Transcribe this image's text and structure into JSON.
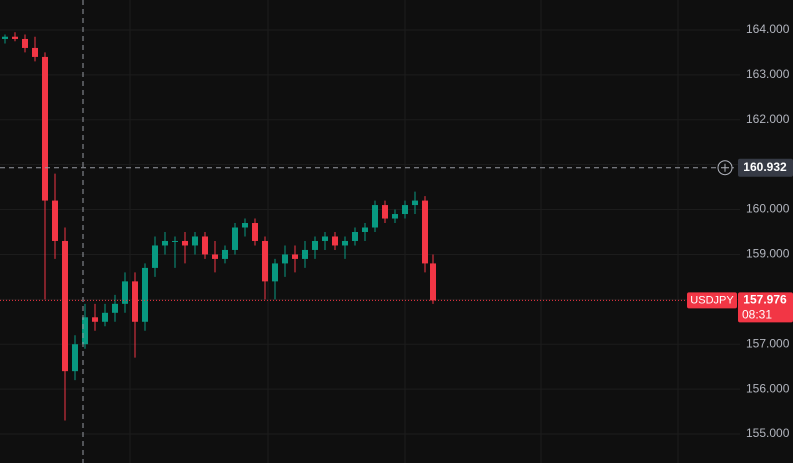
{
  "chart_data": {
    "type": "candlestick",
    "symbol": "USDJPY",
    "last_price": 157.976,
    "countdown": "08:31",
    "crosshair_price": 160.932,
    "up_color": "#089981",
    "down_color": "#f23645",
    "grid": true,
    "ylim": [
      154.354,
      164.668
    ],
    "yticks": [
      {
        "value": 155,
        "label": "155.000"
      },
      {
        "value": 156,
        "label": "156.000"
      },
      {
        "value": 157,
        "label": "157.000"
      },
      {
        "value": 158,
        "label": "158.000"
      },
      {
        "value": 159,
        "label": "159.000"
      },
      {
        "value": 160,
        "label": "160.000"
      },
      {
        "value": 161,
        "label": "161.000"
      },
      {
        "value": 162,
        "label": "162.000"
      },
      {
        "value": 163,
        "label": "163.000"
      },
      {
        "value": 164,
        "label": "164.000"
      }
    ],
    "open": [
      163.8,
      163.85,
      163.8,
      163.6,
      163.4,
      160.2,
      159.3,
      156.4,
      157.0,
      157.6,
      157.5,
      157.7,
      157.9,
      158.4,
      157.5,
      158.7,
      159.2,
      159.3,
      159.3,
      159.2,
      159.4,
      159.0,
      158.9,
      159.1,
      159.6,
      159.7,
      159.3,
      158.4,
      158.8,
      159.0,
      158.9,
      159.1,
      159.3,
      159.4,
      159.2,
      159.3,
      159.5,
      159.6,
      160.1,
      159.8,
      159.9,
      160.1,
      160.2,
      158.8
    ],
    "high": [
      163.9,
      163.95,
      163.9,
      163.85,
      163.5,
      160.8,
      159.6,
      157.2,
      157.9,
      157.9,
      157.9,
      158.1,
      158.6,
      158.6,
      158.8,
      159.4,
      159.5,
      159.4,
      159.5,
      159.5,
      159.5,
      159.3,
      159.2,
      159.7,
      159.8,
      159.8,
      159.4,
      158.9,
      159.2,
      159.2,
      159.3,
      159.4,
      159.5,
      159.5,
      159.4,
      159.6,
      159.7,
      160.2,
      160.2,
      160.0,
      160.2,
      160.4,
      160.3,
      159.0
    ],
    "low": [
      163.7,
      163.75,
      163.5,
      163.3,
      158.0,
      158.9,
      155.3,
      156.2,
      156.9,
      157.3,
      157.4,
      157.5,
      157.7,
      156.7,
      157.3,
      158.5,
      159.0,
      158.7,
      158.8,
      159.0,
      158.9,
      158.6,
      158.8,
      159.0,
      159.4,
      159.2,
      158.0,
      158.0,
      158.5,
      158.6,
      158.7,
      158.9,
      159.1,
      159.1,
      158.9,
      159.2,
      159.3,
      159.5,
      159.7,
      159.7,
      159.8,
      159.9,
      158.6,
      157.9
    ],
    "close": [
      163.85,
      163.8,
      163.6,
      163.4,
      160.2,
      159.3,
      156.4,
      157.0,
      157.6,
      157.5,
      157.7,
      157.9,
      158.4,
      157.5,
      158.7,
      159.2,
      159.3,
      159.3,
      159.2,
      159.4,
      159.0,
      158.9,
      159.1,
      159.6,
      159.7,
      159.3,
      158.4,
      158.8,
      159.0,
      158.9,
      159.1,
      159.3,
      159.4,
      159.2,
      159.3,
      159.5,
      159.6,
      160.1,
      159.8,
      159.9,
      160.1,
      160.2,
      158.8,
      157.976
    ]
  }
}
